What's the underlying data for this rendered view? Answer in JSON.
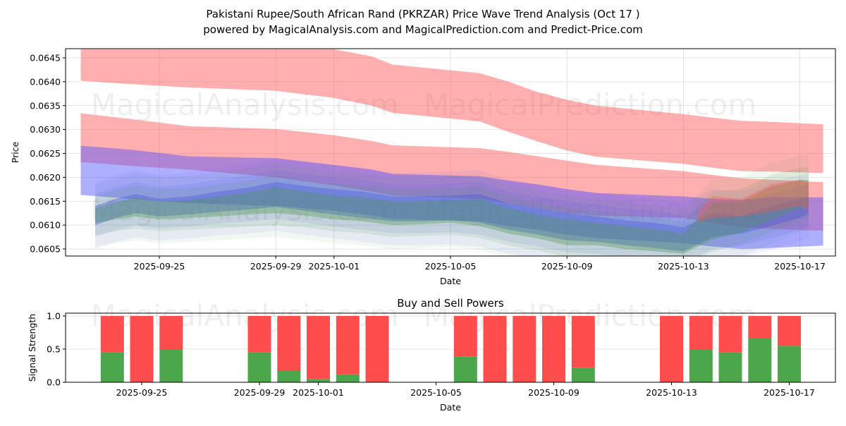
{
  "title_line1": "Pakistani Rupee/South African Rand (PKRZAR) Price Wave Trend Analysis (Oct 17 )",
  "title_line2": "powered by MagicalAnalysis.com and MagicalPrediction.com and Predict-Price.com",
  "watermarks": [
    "MagicalAnalysis.com",
    "MagicalPrediction.com"
  ],
  "colors": {
    "red_band": "#ff5555",
    "blue_band": "#5555ff",
    "green_band": "#4a9a4a",
    "buy": "#4ca64c",
    "sell": "#ff4c4c",
    "grid": "#dddddd"
  },
  "chart_data": [
    {
      "type": "area",
      "title": "Pakistani Rupee/South African Rand (PKRZAR) Price Wave Trend Analysis (Oct 17 )",
      "xlabel": "Date",
      "ylabel": "Price",
      "x_range": [
        "2025-09-21.6",
        "2025-10-18.2"
      ],
      "ylim": [
        0.06037,
        0.06465
      ],
      "yticks": [
        "0.0605",
        "0.0610",
        "0.0615",
        "0.0620",
        "0.0625",
        "0.0630",
        "0.0635",
        "0.0640",
        "0.0645"
      ],
      "ytick_values": [
        0.0605,
        0.061,
        0.0615,
        0.062,
        0.0625,
        0.063,
        0.0635,
        0.064,
        0.0645
      ],
      "xticks": [
        "2025-09-25",
        "2025-09-29",
        "2025-10-01",
        "2025-10-05",
        "2025-10-09",
        "2025-10-13",
        "2025-10-17"
      ],
      "xtick_days": [
        3,
        7,
        9,
        13,
        17,
        21,
        25
      ],
      "grid": true,
      "day0": "2025-09-22",
      "bands": [
        {
          "name": "upper-red-band",
          "color": "red",
          "x": [
            0.3,
            2,
            4,
            7,
            9,
            10.3,
            11,
            14,
            15,
            16,
            17,
            18,
            21,
            22,
            23,
            24,
            25.8
          ],
          "upper": [
            0.06468,
            0.06468,
            0.06468,
            0.06468,
            0.06468,
            0.06453,
            0.06436,
            0.06418,
            0.064,
            0.06378,
            0.06362,
            0.0635,
            0.06332,
            0.06325,
            0.06318,
            0.06316,
            0.06311
          ],
          "lower": [
            0.06402,
            0.06395,
            0.06388,
            0.06381,
            0.06366,
            0.0635,
            0.06335,
            0.06317,
            0.06295,
            0.06275,
            0.06256,
            0.06243,
            0.06228,
            0.0622,
            0.06213,
            0.06212,
            0.06209
          ]
        },
        {
          "name": "middle-red-band",
          "color": "red",
          "x": [
            0.3,
            2,
            4,
            7,
            9,
            10.3,
            11,
            14,
            15,
            16,
            17,
            18,
            21,
            22,
            23,
            24,
            25.8
          ],
          "upper": [
            0.06334,
            0.06322,
            0.06307,
            0.06301,
            0.06288,
            0.06276,
            0.06267,
            0.06261,
            0.06253,
            0.06244,
            0.06235,
            0.06226,
            0.06213,
            0.06205,
            0.06198,
            0.06195,
            0.0619
          ],
          "lower": [
            0.06232,
            0.06224,
            0.06216,
            0.062,
            0.06183,
            0.0617,
            0.06162,
            0.06155,
            0.06145,
            0.06135,
            0.06125,
            0.0612,
            0.06115,
            0.06105,
            0.06095,
            0.06092,
            0.06088
          ]
        },
        {
          "name": "upper-blue-band",
          "color": "blue",
          "x": [
            0.3,
            2,
            4,
            7,
            9,
            10.3,
            11,
            14,
            15,
            16,
            17,
            18,
            21,
            22,
            23,
            24,
            25.8
          ],
          "upper": [
            0.06266,
            0.06258,
            0.06244,
            0.0624,
            0.06226,
            0.06216,
            0.06207,
            0.06202,
            0.06193,
            0.06185,
            0.06175,
            0.06167,
            0.0616,
            0.06155,
            0.06153,
            0.06158,
            0.06158
          ],
          "lower": [
            0.06163,
            0.06155,
            0.06146,
            0.0614,
            0.0613,
            0.0612,
            0.06113,
            0.06108,
            0.06098,
            0.0609,
            0.0608,
            0.06073,
            0.06062,
            0.06055,
            0.0605,
            0.06052,
            0.06057
          ]
        },
        {
          "name": "price-wave-blue",
          "color": "blue",
          "x": [
            0.8,
            1.5,
            2.2,
            3,
            4,
            5,
            6,
            7,
            8,
            9,
            10,
            11,
            12,
            13,
            14,
            15,
            16,
            17,
            18,
            19,
            20,
            21,
            22,
            23,
            24,
            25,
            25.3
          ],
          "upper": [
            0.0614,
            0.06155,
            0.06165,
            0.06155,
            0.0616,
            0.0617,
            0.06178,
            0.0619,
            0.06182,
            0.06175,
            0.0617,
            0.0616,
            0.0616,
            0.06162,
            0.06165,
            0.06145,
            0.06135,
            0.06125,
            0.06118,
            0.0611,
            0.06105,
            0.06095,
            0.06125,
            0.0612,
            0.0614,
            0.06155,
            0.0616
          ],
          "lower": [
            0.061,
            0.06115,
            0.06125,
            0.06118,
            0.06122,
            0.06128,
            0.06132,
            0.06138,
            0.0613,
            0.06122,
            0.06115,
            0.06108,
            0.06108,
            0.0611,
            0.06105,
            0.0609,
            0.0608,
            0.06068,
            0.06065,
            0.06058,
            0.06052,
            0.06045,
            0.06075,
            0.06082,
            0.06098,
            0.06115,
            0.06125
          ]
        },
        {
          "name": "price-wave-green",
          "color": "green",
          "x": [
            0.8,
            1.5,
            2.2,
            3,
            4,
            5,
            6,
            7,
            8,
            9,
            10,
            11,
            12,
            13,
            14,
            15,
            16,
            17,
            18,
            19,
            20,
            21,
            22,
            23,
            24,
            25,
            25.3
          ],
          "upper": [
            0.06135,
            0.06148,
            0.06158,
            0.0615,
            0.06152,
            0.0616,
            0.06168,
            0.0618,
            0.0617,
            0.06162,
            0.06158,
            0.0615,
            0.0615,
            0.06152,
            0.06155,
            0.06135,
            0.06122,
            0.06112,
            0.06105,
            0.06098,
            0.06092,
            0.06082,
            0.06145,
            0.0615,
            0.0618,
            0.06195,
            0.06195
          ],
          "lower": [
            0.06105,
            0.06112,
            0.06118,
            0.06112,
            0.06115,
            0.06118,
            0.06122,
            0.06125,
            0.0612,
            0.06112,
            0.06108,
            0.061,
            0.06102,
            0.06105,
            0.06098,
            0.06082,
            0.06072,
            0.06058,
            0.06058,
            0.0605,
            0.06045,
            0.0604,
            0.0607,
            0.06085,
            0.0611,
            0.06135,
            0.0614
          ]
        },
        {
          "name": "purple-forecast-wave",
          "color": "red",
          "x": [
            21.5,
            22,
            23,
            24,
            25,
            25.3
          ],
          "upper": [
            0.0613,
            0.0616,
            0.06155,
            0.06185,
            0.06195,
            0.0619
          ],
          "lower": [
            0.06105,
            0.06115,
            0.06118,
            0.06128,
            0.0614,
            0.0613
          ]
        }
      ]
    },
    {
      "type": "bar",
      "title": "Buy and Sell Powers",
      "xlabel": "Date",
      "ylabel": "Signal Strength",
      "ylim": [
        0,
        1.05
      ],
      "yticks": [
        "0.0",
        "0.5",
        "1.0"
      ],
      "ytick_values": [
        0.0,
        0.5,
        1.0
      ],
      "xticks": [
        "2025-09-25",
        "2025-09-29",
        "2025-10-01",
        "2025-10-05",
        "2025-10-09",
        "2025-10-13",
        "2025-10-17"
      ],
      "xtick_days": [
        3,
        7,
        9,
        13,
        17,
        21,
        25
      ],
      "grid": true,
      "categories": [
        "2025-09-24",
        "2025-09-25",
        "2025-09-26",
        "2025-09-29",
        "2025-09-30",
        "2025-10-01",
        "2025-10-02",
        "2025-10-03",
        "2025-10-06",
        "2025-10-07",
        "2025-10-08",
        "2025-10-09",
        "2025-10-10",
        "2025-10-13",
        "2025-10-14",
        "2025-10-15",
        "2025-10-16",
        "2025-10-17"
      ],
      "days": [
        2,
        3,
        4,
        7,
        8,
        9,
        10,
        11,
        14,
        15,
        16,
        17,
        18,
        21,
        22,
        23,
        24,
        25
      ],
      "series": [
        {
          "name": "Buy",
          "values": [
            0.45,
            0.0,
            0.5,
            0.45,
            0.17,
            0.05,
            0.12,
            0.0,
            0.39,
            0.0,
            0.0,
            0.0,
            0.22,
            0.0,
            0.5,
            0.45,
            0.67,
            0.55
          ]
        },
        {
          "name": "Sell",
          "values": [
            0.55,
            1.0,
            0.5,
            0.55,
            0.83,
            0.95,
            0.88,
            1.0,
            0.61,
            1.0,
            1.0,
            1.0,
            0.78,
            1.0,
            0.5,
            0.55,
            0.33,
            0.45
          ]
        }
      ]
    }
  ]
}
